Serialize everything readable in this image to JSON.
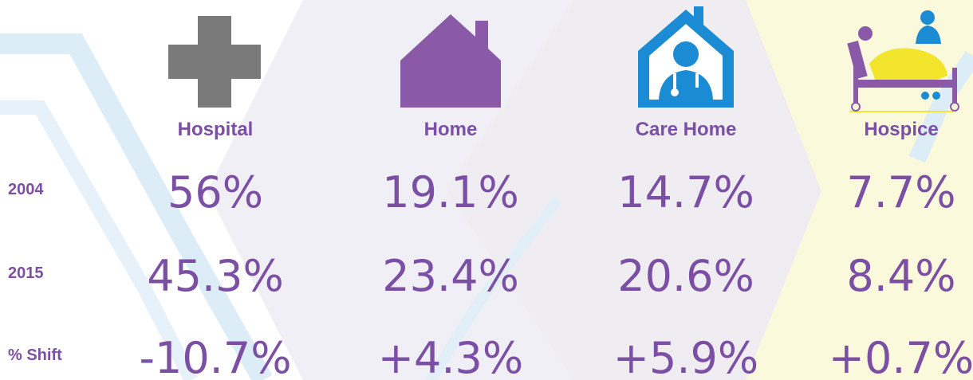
{
  "table": {
    "columns": [
      "Hospital",
      "Home",
      "Care Home",
      "Hospice"
    ],
    "rows": [
      {
        "label": "2004",
        "cells": [
          "56%",
          "19.1%",
          "14.7%",
          "7.7%"
        ]
      },
      {
        "label": "2015",
        "cells": [
          "45.3%",
          "23.4%",
          "20.6%",
          "8.4%"
        ]
      },
      {
        "label": "% Shift",
        "cells": [
          "-10.7%",
          "+4.3%",
          "+5.9%",
          "+0.7%"
        ]
      }
    ]
  }
}
